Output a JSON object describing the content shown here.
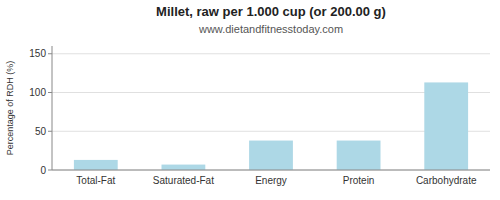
{
  "chart_data": {
    "type": "bar",
    "title": "Millet, raw per 1.000 cup (or 200.00 g)",
    "subtitle": "www.dietandfitnesstoday.com",
    "categories": [
      "Total-Fat",
      "Saturated-Fat",
      "Energy",
      "Protein",
      "Carbohydrate"
    ],
    "values": [
      13,
      7,
      38,
      38,
      113
    ],
    "color": "#add8e6",
    "ylabel": "Percentage of RDH (%)",
    "ylim": [
      0,
      160
    ],
    "yticks": [
      0,
      50,
      100,
      150
    ],
    "grid": true
  }
}
